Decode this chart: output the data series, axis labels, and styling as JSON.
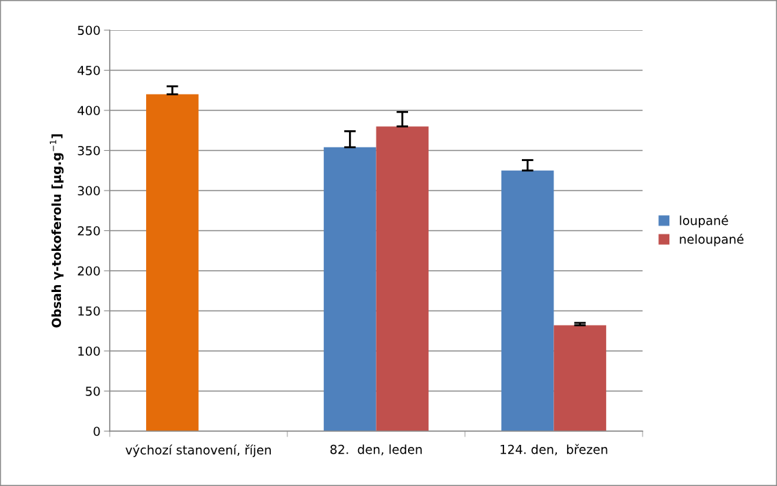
{
  "chart_data": {
    "type": "bar",
    "ylabel": "Obsah γ-tokoferolu [μg.g$^{−1}$]",
    "categories": [
      "výchozí stanovení, říjen",
      "82.  den, leden",
      "124. den,  březen"
    ],
    "series": [
      {
        "name": "loupané",
        "color": "#4f81bd",
        "colors": [
          "#e46c0a",
          "#4f81bd",
          "#4f81bd"
        ],
        "values": [
          420,
          354,
          325
        ],
        "errors": [
          10,
          20,
          13
        ]
      },
      {
        "name": "neloupané",
        "color": "#c0504d",
        "values": [
          null,
          380,
          132
        ],
        "errors": [
          null,
          18,
          3
        ]
      }
    ],
    "ylim": [
      0,
      500
    ],
    "yticks": [
      0,
      50,
      100,
      150,
      200,
      250,
      300,
      350,
      400,
      450,
      500
    ],
    "grid": "y",
    "legend": "right"
  }
}
